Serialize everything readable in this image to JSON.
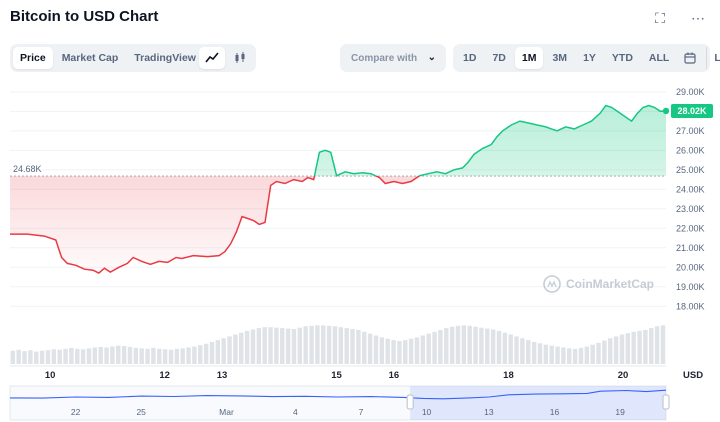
{
  "header": {
    "title": "Bitcoin to USD Chart",
    "fullscreen_icon": "fullscreen-icon",
    "more_icon": "more-dots-icon"
  },
  "toolbar": {
    "data_tabs": [
      "Price",
      "Market Cap",
      "TradingView"
    ],
    "active_data_tab": "Price",
    "chart_types": [
      "line-chart-icon",
      "candlestick-icon"
    ],
    "active_chart_type": "line-chart-icon",
    "compare_placeholder": "Compare with",
    "ranges": [
      "1D",
      "7D",
      "1M",
      "3M",
      "1Y",
      "YTD",
      "ALL"
    ],
    "active_range": "1M",
    "calendar_icon": "calendar-icon",
    "log_label": "LOG"
  },
  "watermark": "CoinMarketCap",
  "colors": {
    "up": "#16c784",
    "down": "#ea3943",
    "navigator": "#3861fb"
  },
  "chart_data": {
    "type": "line",
    "baseline_label": "24.68K",
    "baseline_value": 24.68,
    "current_label": "28.02K",
    "current_value": 28.02,
    "y_ticks": [
      "29.00K",
      "28.00K",
      "27.00K",
      "26.00K",
      "25.00K",
      "24.00K",
      "23.00K",
      "22.00K",
      "21.00K",
      "20.00K",
      "19.00K",
      "18.00K"
    ],
    "ylim": [
      17.5,
      29.3
    ],
    "y_unit": "USD",
    "x_ticks": [
      "10",
      "12",
      "13",
      "15",
      "16",
      "18",
      "20"
    ],
    "x_tick_positions": [
      0.7,
      2.7,
      3.7,
      5.7,
      6.7,
      8.7,
      10.7
    ],
    "xlim": [
      0,
      11.45
    ],
    "series": [
      {
        "values": [
          [
            0.0,
            21.7
          ],
          [
            0.3,
            21.7
          ],
          [
            0.6,
            21.6
          ],
          [
            0.8,
            21.4
          ],
          [
            0.9,
            20.5
          ],
          [
            1.0,
            20.2
          ],
          [
            1.15,
            20.1
          ],
          [
            1.3,
            19.9
          ],
          [
            1.45,
            19.85
          ],
          [
            1.55,
            19.7
          ],
          [
            1.65,
            19.95
          ],
          [
            1.75,
            19.75
          ],
          [
            1.9,
            20.0
          ],
          [
            2.05,
            20.2
          ],
          [
            2.15,
            20.5
          ],
          [
            2.3,
            20.3
          ],
          [
            2.45,
            20.15
          ],
          [
            2.6,
            20.3
          ],
          [
            2.75,
            20.25
          ],
          [
            2.9,
            20.5
          ],
          [
            3.0,
            20.45
          ],
          [
            3.2,
            20.6
          ],
          [
            3.45,
            20.55
          ],
          [
            3.65,
            20.6
          ],
          [
            3.75,
            20.8
          ],
          [
            3.85,
            21.2
          ],
          [
            3.95,
            21.8
          ],
          [
            4.05,
            22.6
          ],
          [
            4.15,
            22.5
          ],
          [
            4.25,
            22.4
          ],
          [
            4.35,
            22.2
          ],
          [
            4.45,
            22.3
          ],
          [
            4.55,
            24.2
          ],
          [
            4.65,
            24.4
          ],
          [
            4.8,
            24.3
          ],
          [
            4.95,
            24.5
          ],
          [
            5.1,
            24.4
          ],
          [
            5.2,
            24.6
          ],
          [
            5.3,
            24.5
          ],
          [
            5.4,
            25.9
          ],
          [
            5.5,
            26.0
          ],
          [
            5.6,
            25.9
          ],
          [
            5.7,
            24.7
          ],
          [
            5.85,
            24.9
          ],
          [
            6.0,
            24.8
          ],
          [
            6.15,
            24.85
          ],
          [
            6.3,
            24.8
          ],
          [
            6.45,
            24.6
          ],
          [
            6.55,
            24.3
          ],
          [
            6.7,
            24.4
          ],
          [
            6.85,
            24.3
          ],
          [
            7.0,
            24.4
          ],
          [
            7.15,
            24.7
          ],
          [
            7.3,
            24.8
          ],
          [
            7.45,
            24.9
          ],
          [
            7.6,
            24.8
          ],
          [
            7.75,
            25.0
          ],
          [
            7.9,
            25.1
          ],
          [
            8.0,
            25.4
          ],
          [
            8.1,
            25.8
          ],
          [
            8.25,
            26.1
          ],
          [
            8.4,
            26.3
          ],
          [
            8.5,
            26.7
          ],
          [
            8.6,
            27.0
          ],
          [
            8.75,
            27.3
          ],
          [
            8.9,
            27.5
          ],
          [
            9.05,
            27.4
          ],
          [
            9.2,
            27.3
          ],
          [
            9.35,
            27.2
          ],
          [
            9.45,
            27.1
          ],
          [
            9.55,
            27.0
          ],
          [
            9.7,
            27.2
          ],
          [
            9.85,
            27.1
          ],
          [
            10.0,
            27.3
          ],
          [
            10.15,
            27.5
          ],
          [
            10.3,
            27.9
          ],
          [
            10.4,
            28.3
          ],
          [
            10.5,
            28.2
          ],
          [
            10.6,
            28.0
          ],
          [
            10.75,
            27.7
          ],
          [
            10.85,
            27.5
          ],
          [
            10.95,
            27.9
          ],
          [
            11.05,
            28.2
          ],
          [
            11.15,
            28.3
          ],
          [
            11.25,
            28.2
          ],
          [
            11.35,
            28.0
          ],
          [
            11.45,
            28.02
          ]
        ]
      }
    ],
    "volume_bars": [
      0.29,
      0.31,
      0.28,
      0.3,
      0.27,
      0.29,
      0.3,
      0.32,
      0.31,
      0.33,
      0.35,
      0.33,
      0.32,
      0.34,
      0.36,
      0.37,
      0.36,
      0.38,
      0.4,
      0.39,
      0.37,
      0.35,
      0.34,
      0.33,
      0.35,
      0.33,
      0.32,
      0.31,
      0.33,
      0.34,
      0.36,
      0.38,
      0.41,
      0.44,
      0.48,
      0.52,
      0.56,
      0.6,
      0.64,
      0.68,
      0.72,
      0.75,
      0.78,
      0.8,
      0.8,
      0.79,
      0.78,
      0.77,
      0.76,
      0.79,
      0.82,
      0.83,
      0.84,
      0.84,
      0.83,
      0.82,
      0.8,
      0.78,
      0.76,
      0.74,
      0.7,
      0.66,
      0.62,
      0.58,
      0.55,
      0.52,
      0.5,
      0.52,
      0.55,
      0.58,
      0.62,
      0.66,
      0.7,
      0.74,
      0.78,
      0.81,
      0.83,
      0.84,
      0.83,
      0.81,
      0.79,
      0.77,
      0.75,
      0.72,
      0.68,
      0.64,
      0.6,
      0.56,
      0.52,
      0.48,
      0.45,
      0.42,
      0.4,
      0.38,
      0.36,
      0.34,
      0.33,
      0.35,
      0.38,
      0.42,
      0.46,
      0.51,
      0.56,
      0.6,
      0.64,
      0.67,
      0.7,
      0.72,
      0.74,
      0.78,
      0.82,
      0.84
    ],
    "navigator": {
      "labels": [
        "22",
        "25",
        "Mar",
        "4",
        "7",
        "10",
        "13",
        "16",
        "19"
      ],
      "label_positions": [
        0.1,
        0.2,
        0.33,
        0.435,
        0.535,
        0.635,
        0.73,
        0.83,
        0.93
      ],
      "selection_start": 0.61,
      "selection_end": 1.0,
      "values": [
        [
          0.0,
          0.55
        ],
        [
          0.05,
          0.56
        ],
        [
          0.1,
          0.5
        ],
        [
          0.15,
          0.52
        ],
        [
          0.2,
          0.45
        ],
        [
          0.25,
          0.47
        ],
        [
          0.3,
          0.42
        ],
        [
          0.35,
          0.44
        ],
        [
          0.4,
          0.48
        ],
        [
          0.45,
          0.46
        ],
        [
          0.5,
          0.5
        ],
        [
          0.55,
          0.48
        ],
        [
          0.6,
          0.52
        ],
        [
          0.63,
          0.58
        ],
        [
          0.66,
          0.6
        ],
        [
          0.7,
          0.55
        ],
        [
          0.73,
          0.5
        ],
        [
          0.76,
          0.38
        ],
        [
          0.8,
          0.34
        ],
        [
          0.84,
          0.32
        ],
        [
          0.88,
          0.3
        ],
        [
          0.9,
          0.18
        ],
        [
          0.94,
          0.14
        ],
        [
          0.97,
          0.2
        ],
        [
          1.0,
          0.12
        ]
      ]
    }
  }
}
